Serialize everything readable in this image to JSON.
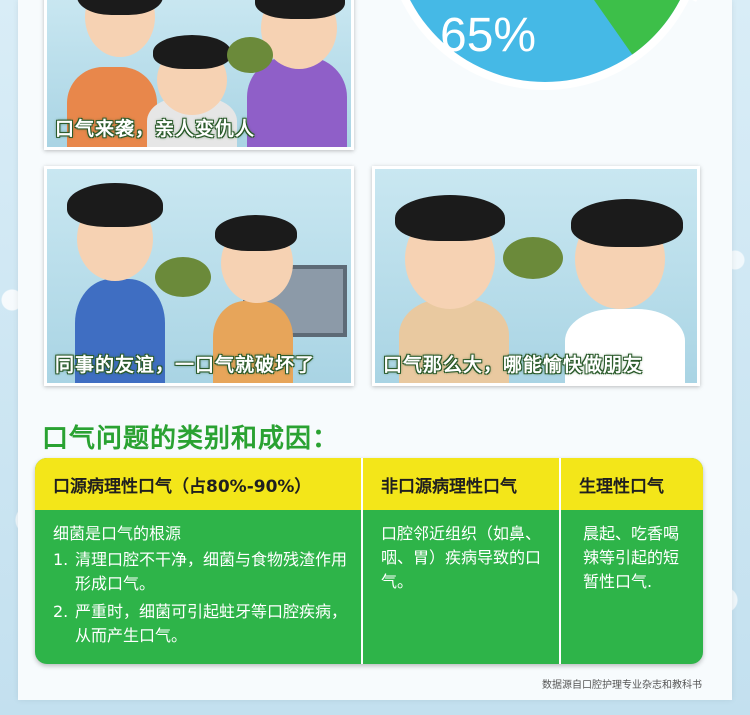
{
  "pie": {
    "percent_label": "65%",
    "colors": {
      "blue": "#45b9e6",
      "green": "#3dbf49"
    }
  },
  "panels": [
    {
      "caption": "口气来袭，亲人变仇人"
    },
    {
      "caption": "同事的友谊，一口气就破坏了"
    },
    {
      "caption": "口气那么大，哪能愉快做朋友"
    }
  ],
  "section_title": "口气问题的类别和成因：",
  "table": {
    "headers": [
      "口源病理性口气（占80%-90%）",
      "非口源病理性口气",
      "生理性口气"
    ],
    "col1": {
      "lead": "细菌是口气的根源",
      "items": [
        {
          "num": "1.",
          "text": "清理口腔不干净，细菌与食物残渣作用形成口气。"
        },
        {
          "num": "2.",
          "text": "严重时，细菌可引起蛀牙等口腔疾病，从而产生口气。"
        }
      ]
    },
    "col2": "口腔邻近组织（如鼻、咽、胃）疾病导致的口气。",
    "col3": "晨起、吃香喝辣等引起的短暂性口气."
  },
  "source": "数据源自口腔护理专业杂志和教科书",
  "colors": {
    "title_green": "#2aa232",
    "table_green": "#2eb449",
    "header_yellow": "#f3e619"
  }
}
